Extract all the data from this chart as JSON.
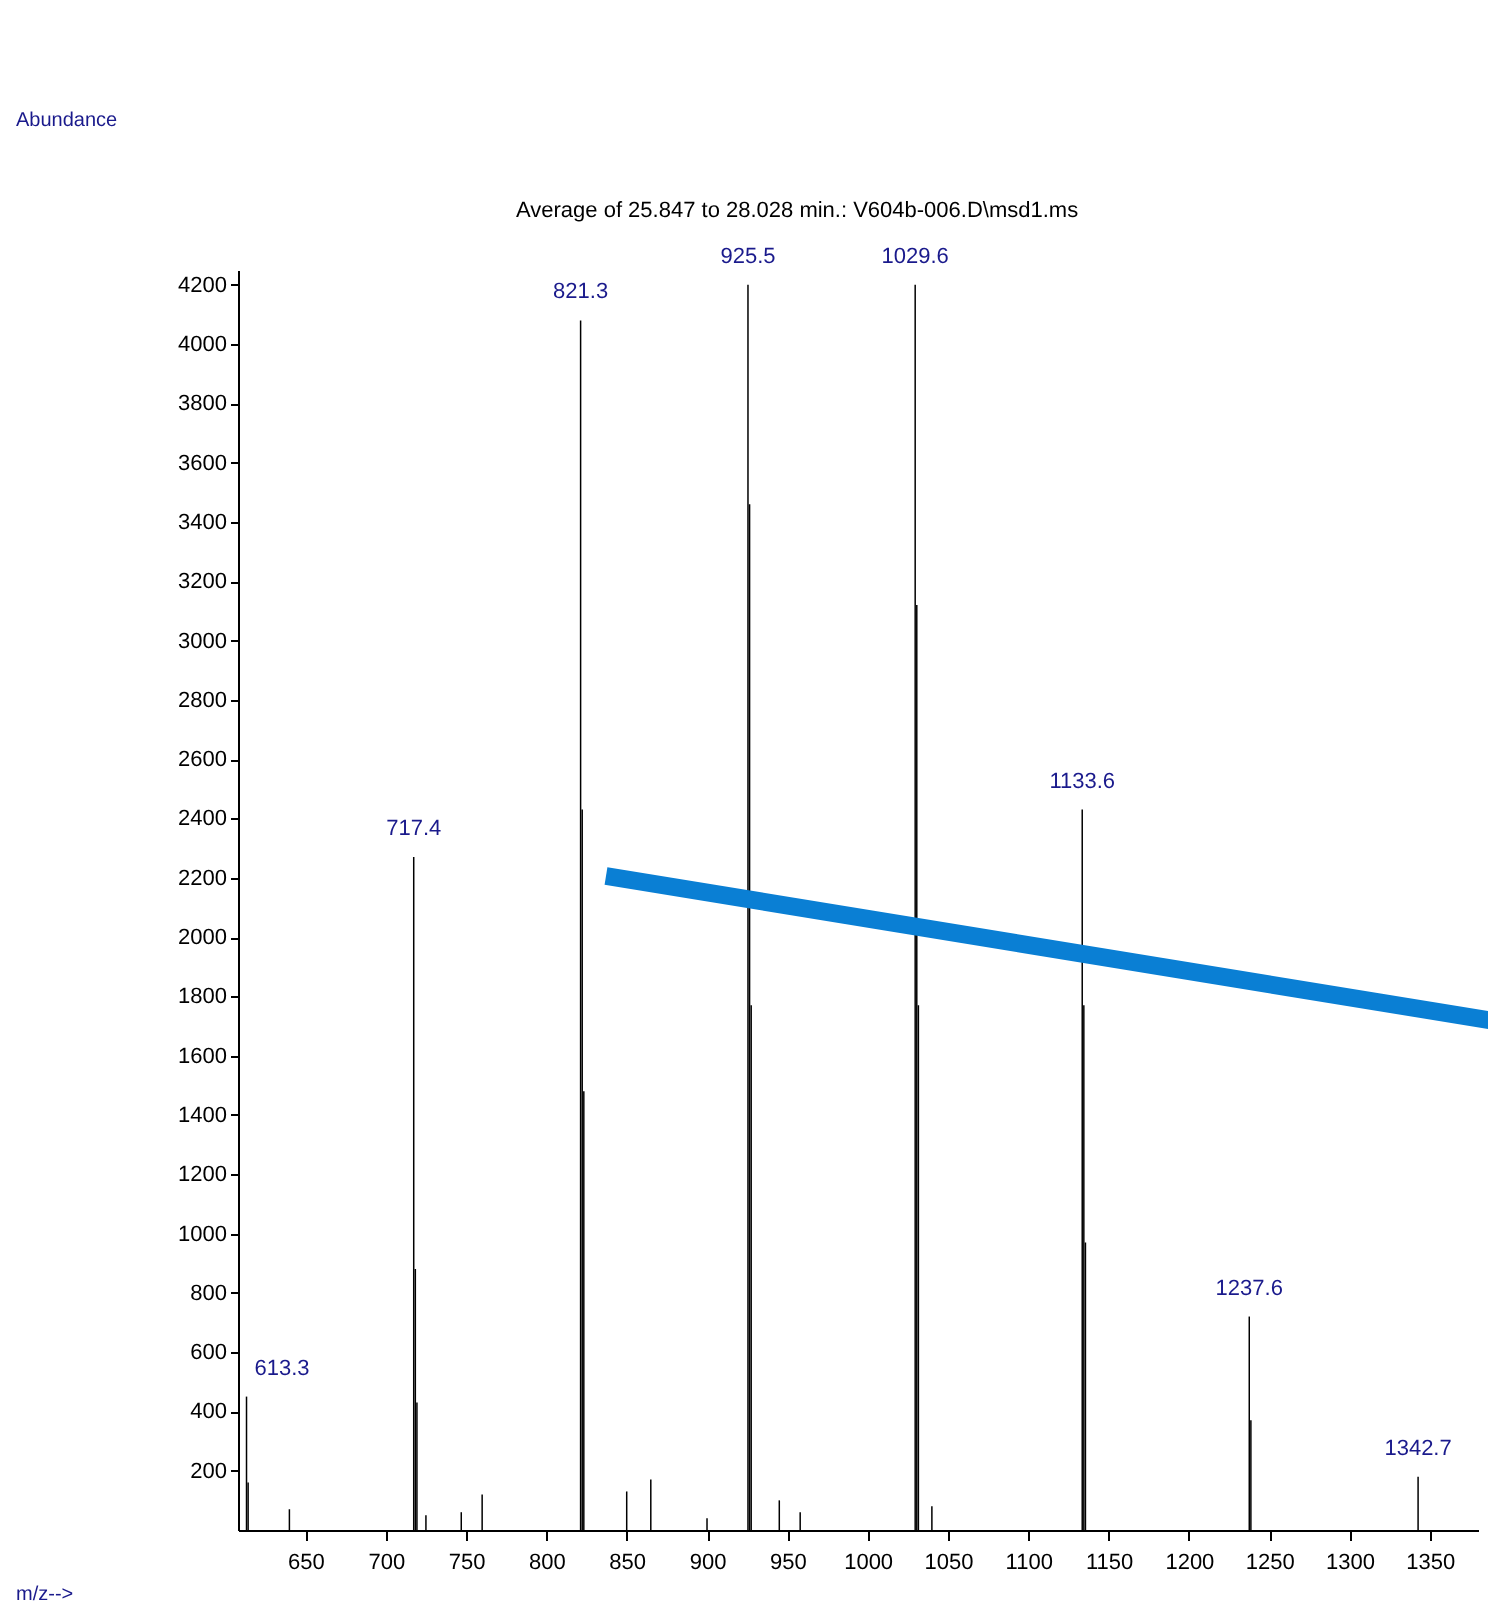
{
  "chart_data": {
    "type": "bar",
    "title": "Average of 25.847 to 28.028 min.: V604b-006.D\\msd1.ms",
    "x": [
      613.3,
      614.3,
      640,
      717.4,
      718.4,
      719.4,
      725,
      747,
      760,
      821.3,
      822.3,
      823.3,
      850,
      865,
      900,
      925.5,
      926.5,
      927.5,
      945,
      958,
      1029.6,
      1030.6,
      1031.6,
      1040,
      1133.6,
      1134.6,
      1135.6,
      1237.6,
      1238.6,
      1342.7
    ],
    "series": [
      {
        "color": "#000000",
        "values": [
          450,
          160,
          70,
          2270,
          880,
          430,
          50,
          60,
          120,
          4080,
          2430,
          1480,
          130,
          170,
          40,
          4200,
          3460,
          1770,
          100,
          60,
          4200,
          3120,
          1770,
          80,
          2430,
          1770,
          970,
          720,
          370,
          180
        ]
      }
    ],
    "xlim": [
      608,
      1380
    ],
    "xticks": [
      650,
      700,
      750,
      800,
      850,
      900,
      950,
      1000,
      1050,
      1100,
      1150,
      1200,
      1250,
      1300,
      1350
    ],
    "ylim": [
      0,
      4250
    ],
    "yticks": [
      200,
      400,
      600,
      800,
      1000,
      1200,
      1400,
      1600,
      1800,
      2000,
      2200,
      2400,
      2600,
      2800,
      3000,
      3200,
      3400,
      3600,
      3800,
      4000,
      4200
    ],
    "annotations": [
      "Abundance",
      "m/z-->",
      {
        "text": "613.3",
        "x": 613.3,
        "y": 450
      },
      {
        "text": "717.4",
        "x": 717.4,
        "y": 2270
      },
      {
        "text": "821.3",
        "x": 821.3,
        "y": 4080
      },
      {
        "text": "925.5",
        "x": 925.5,
        "y": 4200
      },
      {
        "text": "1029.6",
        "x": 1029.6,
        "y": 4200
      },
      {
        "text": "1133.6",
        "x": 1133.6,
        "y": 2430
      },
      {
        "text": "1237.6",
        "x": 1237.6,
        "y": 720
      },
      {
        "text": "1342.7",
        "x": 1342.7,
        "y": 180
      }
    ],
    "grid": false
  }
}
